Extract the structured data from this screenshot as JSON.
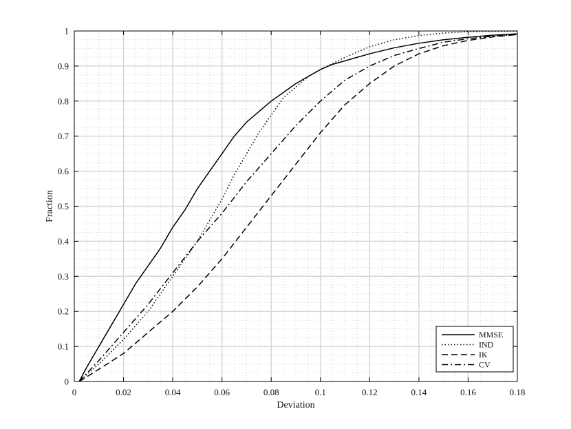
{
  "chart_data": {
    "type": "line",
    "title": "",
    "xlabel": "Deviation",
    "ylabel": "Fraction",
    "xlim": [
      0,
      0.18
    ],
    "ylim": [
      0,
      1
    ],
    "x_ticks": [
      "0",
      "0.02",
      "0.04",
      "0.06",
      "0.08",
      "0.1",
      "0.12",
      "0.14",
      "0.16",
      "0.18"
    ],
    "y_ticks": [
      "0",
      "0.1",
      "0.2",
      "0.3",
      "0.4",
      "0.5",
      "0.6",
      "0.7",
      "0.8",
      "0.9",
      "1"
    ],
    "grid": true,
    "legend_position": "bottom-right",
    "series": [
      {
        "name": "MMSE",
        "line_style": "solid",
        "x": [
          0.002,
          0.005,
          0.01,
          0.015,
          0.02,
          0.025,
          0.03,
          0.035,
          0.04,
          0.045,
          0.05,
          0.055,
          0.06,
          0.065,
          0.07,
          0.075,
          0.08,
          0.085,
          0.09,
          0.095,
          0.1,
          0.105,
          0.11,
          0.12,
          0.13,
          0.14,
          0.15,
          0.16,
          0.17,
          0.18
        ],
        "y": [
          0,
          0.04,
          0.1,
          0.16,
          0.22,
          0.28,
          0.33,
          0.38,
          0.44,
          0.49,
          0.55,
          0.6,
          0.65,
          0.7,
          0.74,
          0.77,
          0.8,
          0.825,
          0.85,
          0.87,
          0.89,
          0.905,
          0.915,
          0.935,
          0.952,
          0.965,
          0.975,
          0.982,
          0.988,
          0.992
        ]
      },
      {
        "name": "IND",
        "line_style": "dotted",
        "x": [
          0.002,
          0.01,
          0.02,
          0.03,
          0.04,
          0.05,
          0.06,
          0.065,
          0.07,
          0.075,
          0.08,
          0.085,
          0.09,
          0.095,
          0.1,
          0.11,
          0.12,
          0.13,
          0.14,
          0.15,
          0.16,
          0.17,
          0.18
        ],
        "y": [
          0,
          0.05,
          0.12,
          0.2,
          0.3,
          0.4,
          0.52,
          0.59,
          0.65,
          0.71,
          0.76,
          0.81,
          0.84,
          0.87,
          0.89,
          0.925,
          0.955,
          0.975,
          0.987,
          0.994,
          0.998,
          0.999,
          1.0
        ]
      },
      {
        "name": "IK",
        "line_style": "dashed",
        "x": [
          0.002,
          0.01,
          0.02,
          0.03,
          0.04,
          0.05,
          0.06,
          0.07,
          0.08,
          0.09,
          0.1,
          0.11,
          0.12,
          0.13,
          0.14,
          0.15,
          0.16,
          0.17,
          0.18
        ],
        "y": [
          0,
          0.035,
          0.08,
          0.14,
          0.2,
          0.27,
          0.35,
          0.44,
          0.53,
          0.62,
          0.71,
          0.79,
          0.85,
          0.9,
          0.935,
          0.958,
          0.973,
          0.983,
          0.99
        ]
      },
      {
        "name": "CV",
        "line_style": "dashdot",
        "x": [
          0.002,
          0.01,
          0.02,
          0.03,
          0.04,
          0.05,
          0.06,
          0.07,
          0.08,
          0.09,
          0.1,
          0.11,
          0.12,
          0.13,
          0.14,
          0.15,
          0.16,
          0.17,
          0.18
        ],
        "y": [
          0,
          0.06,
          0.14,
          0.22,
          0.31,
          0.4,
          0.48,
          0.57,
          0.65,
          0.73,
          0.8,
          0.86,
          0.9,
          0.93,
          0.95,
          0.968,
          0.978,
          0.985,
          0.99
        ]
      }
    ]
  }
}
